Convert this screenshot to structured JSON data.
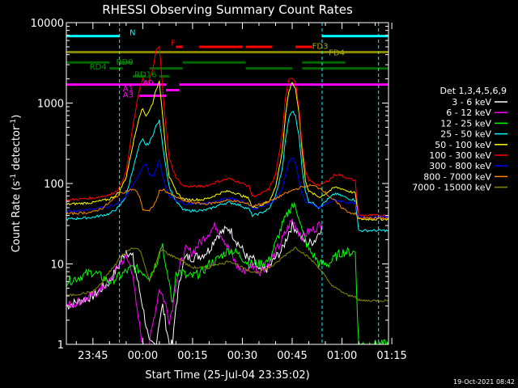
{
  "chart_data": {
    "type": "line",
    "title": "RHESSI Observing Summary Count Rates",
    "xlabel": "Start Time (25-Jul-04 23:35:02)",
    "ylabel_main": "Count Rate (s",
    "ylabel_sup1": "-1",
    "ylabel_mid": " detector",
    "ylabel_sup2": "-1",
    "ylabel_end": ")",
    "yscale": "log",
    "ylim": [
      1,
      10000
    ],
    "xlim_minutes": [
      -23,
      74
    ],
    "x_unit": "minutes from 00:00 (26-Jul-04)",
    "yticks": [
      {
        "value": 1,
        "label": "1"
      },
      {
        "value": 10,
        "label": "10"
      },
      {
        "value": 100,
        "label": "100"
      },
      {
        "value": 1000,
        "label": "1000"
      },
      {
        "value": 10000,
        "label": "10000"
      }
    ],
    "xticks": [
      {
        "value": -15,
        "label": "23:45"
      },
      {
        "value": 0,
        "label": "00:00"
      },
      {
        "value": 15,
        "label": "00:15"
      },
      {
        "value": 30,
        "label": "00:30"
      },
      {
        "value": 45,
        "label": "00:45"
      },
      {
        "value": 60,
        "label": "01:00"
      },
      {
        "value": 75,
        "label": "01:15"
      }
    ],
    "legend_title": "Det 1,3,4,5,6,9",
    "legend_position": "right",
    "timestamp": "19-Oct-2021 08:42",
    "vlines_minutes": [
      -7,
      54,
      71
    ],
    "series": [
      {
        "name": "3 - 6 keV",
        "color": "#ffffff",
        "x": [
          -23,
          -15,
          -10,
          -7,
          -5,
          -3,
          0,
          2,
          4,
          5,
          6,
          8,
          9,
          10,
          12,
          13,
          15,
          18,
          20,
          22,
          24,
          26,
          28,
          30,
          32,
          33,
          35,
          38,
          40,
          42,
          44,
          45,
          46,
          47,
          48,
          50,
          52,
          53,
          54
        ],
        "y": [
          3,
          4,
          6,
          10,
          15,
          12,
          3,
          1,
          1,
          2,
          3,
          1,
          1,
          3,
          10,
          12,
          12,
          13,
          15,
          22,
          25,
          28,
          20,
          15,
          11,
          12,
          8,
          9,
          12,
          15,
          25,
          30,
          28,
          24,
          20,
          18,
          20,
          25,
          30
        ]
      },
      {
        "name": "6 - 12 keV",
        "color": "#ff00ff",
        "x": [
          -23,
          -15,
          -10,
          -7,
          -5,
          -3,
          -2,
          0,
          2,
          4,
          5,
          6,
          7,
          8,
          9,
          10,
          12,
          13,
          15,
          18,
          20,
          22,
          24,
          26,
          28,
          30,
          32,
          33,
          35,
          38,
          40,
          42,
          44,
          45,
          46,
          47,
          48,
          50,
          52,
          53,
          54
        ],
        "y": [
          3,
          4,
          6,
          10,
          12,
          8,
          3,
          1,
          1,
          3,
          5,
          4,
          3,
          2,
          3,
          6,
          12,
          15,
          14,
          20,
          25,
          30,
          22,
          15,
          10,
          8,
          9,
          10,
          8,
          10,
          14,
          20,
          30,
          35,
          30,
          25,
          22,
          25,
          28,
          30,
          32
        ]
      },
      {
        "name": "12 - 25 keV",
        "color": "#00ff00",
        "x": [
          -23,
          -15,
          -10,
          -7,
          -5,
          -3,
          0,
          2,
          4,
          5,
          6,
          7,
          8,
          9,
          10,
          12,
          13,
          15,
          18,
          20,
          22,
          24,
          26,
          28,
          30,
          32,
          33,
          35,
          38,
          40,
          42,
          44,
          45,
          46,
          47,
          48,
          50,
          52,
          53,
          54,
          56,
          58,
          60,
          62,
          64,
          65,
          66,
          68,
          70,
          72,
          74
        ],
        "y": [
          6,
          8,
          6,
          7,
          8,
          9,
          8,
          7,
          10,
          14,
          18,
          8,
          6,
          3,
          8,
          8,
          7,
          7,
          8,
          10,
          11,
          13,
          15,
          14,
          12,
          10,
          10,
          10,
          11,
          18,
          30,
          45,
          55,
          50,
          40,
          25,
          15,
          12,
          10,
          10,
          10,
          12,
          14,
          14,
          14,
          1,
          1,
          1,
          1,
          1,
          1
        ]
      },
      {
        "name": "25 - 50 keV",
        "color": "#00ffff",
        "x": [
          -23,
          -15,
          -10,
          -8,
          -7,
          -5,
          -3,
          -1,
          0,
          1,
          2,
          3,
          4,
          5,
          6,
          7,
          8,
          10,
          12,
          13,
          15,
          18,
          20,
          22,
          24,
          26,
          28,
          30,
          32,
          33,
          35,
          38,
          40,
          42,
          43,
          44,
          45,
          46,
          47,
          48,
          49,
          50,
          52,
          53,
          54,
          56,
          58,
          60,
          62,
          64,
          65,
          66,
          68,
          70,
          72,
          74
        ],
        "y": [
          36,
          38,
          42,
          48,
          52,
          70,
          150,
          300,
          350,
          300,
          320,
          400,
          520,
          600,
          300,
          160,
          90,
          60,
          48,
          46,
          46,
          46,
          48,
          52,
          56,
          58,
          56,
          52,
          48,
          40,
          42,
          48,
          70,
          150,
          350,
          650,
          800,
          700,
          400,
          150,
          80,
          60,
          55,
          50,
          55,
          65,
          75,
          70,
          65,
          62,
          26,
          26,
          26,
          26,
          26,
          26
        ]
      },
      {
        "name": "50 - 100 keV",
        "color": "#ffff00",
        "x": [
          -23,
          -15,
          -10,
          -8,
          -7,
          -5,
          -3,
          -1,
          0,
          1,
          2,
          3,
          4,
          5,
          6,
          7,
          8,
          10,
          12,
          13,
          15,
          18,
          20,
          22,
          24,
          26,
          28,
          30,
          32,
          33,
          35,
          38,
          40,
          42,
          43,
          44,
          45,
          46,
          47,
          48,
          49,
          50,
          52,
          53,
          54,
          56,
          58,
          60,
          62,
          64,
          65,
          66,
          68,
          70,
          72,
          74
        ],
        "y": [
          55,
          58,
          64,
          72,
          80,
          120,
          300,
          700,
          850,
          700,
          800,
          1000,
          1500,
          1800,
          700,
          250,
          120,
          80,
          65,
          63,
          63,
          63,
          66,
          72,
          78,
          80,
          76,
          70,
          65,
          50,
          52,
          60,
          90,
          250,
          700,
          1400,
          1800,
          1500,
          800,
          250,
          110,
          80,
          72,
          68,
          70,
          80,
          90,
          86,
          80,
          76,
          36,
          36,
          36,
          36,
          36,
          36
        ]
      },
      {
        "name": "100 - 300 keV",
        "color": "#ff0000",
        "x": [
          -23,
          -15,
          -10,
          -8,
          -7,
          -5,
          -3,
          -1,
          0,
          1,
          2,
          3,
          4,
          5,
          6,
          7,
          8,
          10,
          12,
          13,
          15,
          18,
          20,
          22,
          24,
          26,
          28,
          30,
          32,
          33,
          35,
          38,
          40,
          42,
          43,
          44,
          45,
          46,
          47,
          48,
          49,
          50,
          52,
          53,
          54,
          56,
          58,
          60,
          62,
          64,
          65,
          66,
          68,
          70,
          72,
          74
        ],
        "y": [
          62,
          66,
          72,
          80,
          90,
          140,
          500,
          1500,
          2000,
          1600,
          2000,
          2500,
          4500,
          5000,
          1500,
          500,
          200,
          120,
          95,
          92,
          92,
          92,
          96,
          104,
          110,
          115,
          108,
          100,
          92,
          70,
          72,
          85,
          130,
          400,
          1200,
          2000,
          2100,
          1800,
          900,
          300,
          140,
          110,
          100,
          95,
          98,
          110,
          130,
          125,
          115,
          108,
          40,
          40,
          40,
          40,
          40,
          40
        ]
      },
      {
        "name": "300 - 800 keV",
        "color": "#0000ff",
        "x": [
          -23,
          -15,
          -10,
          -8,
          -7,
          -5,
          -3,
          -1,
          0,
          1,
          2,
          3,
          4,
          5,
          6,
          7,
          8,
          10,
          12,
          13,
          15,
          18,
          20,
          22,
          24,
          26,
          28,
          30,
          32,
          33,
          35,
          38,
          40,
          42,
          43,
          44,
          45,
          46,
          47,
          48,
          49,
          50,
          52,
          53,
          54,
          56,
          58,
          60,
          62,
          64,
          65,
          66,
          68,
          70,
          72,
          74
        ],
        "y": [
          45,
          48,
          52,
          56,
          60,
          70,
          95,
          130,
          160,
          170,
          130,
          120,
          150,
          200,
          120,
          90,
          70,
          62,
          58,
          56,
          56,
          57,
          58,
          60,
          64,
          66,
          64,
          60,
          56,
          48,
          50,
          55,
          65,
          85,
          130,
          190,
          210,
          180,
          110,
          75,
          60,
          56,
          52,
          50,
          52,
          58,
          62,
          60,
          58,
          56,
          38,
          38,
          38,
          38,
          38,
          38
        ]
      },
      {
        "name": "800 - 7000 keV",
        "color": "#ff8800",
        "x": [
          -23,
          -15,
          -12,
          -10,
          -8,
          -7,
          -5,
          -3,
          -2,
          -1,
          0,
          2,
          4,
          5,
          6,
          8,
          10,
          12,
          13,
          15,
          18,
          20,
          22,
          24,
          26,
          28,
          30,
          32,
          33,
          35,
          38,
          40,
          42,
          44,
          45,
          46,
          48,
          50,
          52,
          54,
          56,
          58,
          60,
          62,
          64,
          65,
          66,
          68,
          70,
          72,
          74
        ],
        "y": [
          42,
          44,
          50,
          58,
          68,
          75,
          80,
          85,
          80,
          70,
          48,
          45,
          60,
          80,
          85,
          75,
          68,
          62,
          60,
          58,
          56,
          56,
          58,
          60,
          62,
          60,
          58,
          55,
          52,
          55,
          60,
          65,
          72,
          78,
          82,
          85,
          90,
          95,
          92,
          85,
          70,
          60,
          50,
          44,
          42,
          37,
          37,
          37,
          37,
          37,
          37
        ]
      },
      {
        "name": "7000 - 15000 keV",
        "color": "#888800",
        "x": [
          -23,
          -15,
          -12,
          -10,
          -8,
          -7,
          -5,
          -3,
          -1,
          0,
          2,
          4,
          5,
          6,
          8,
          10,
          12,
          13,
          15,
          18,
          20,
          22,
          24,
          26,
          28,
          30,
          32,
          33,
          35,
          38,
          40,
          42,
          44,
          45,
          46,
          48,
          50,
          52,
          54,
          56,
          58,
          60,
          62,
          64,
          65,
          66,
          68,
          70,
          72,
          74
        ],
        "y": [
          4,
          4.5,
          6,
          8,
          10,
          12,
          14,
          16,
          15,
          12,
          6,
          10,
          14,
          15,
          13,
          12,
          11,
          10,
          9,
          9,
          9,
          10,
          10,
          11,
          10,
          9,
          8,
          8,
          8,
          9,
          10,
          12,
          14,
          15,
          16,
          14,
          12,
          10,
          8,
          6,
          5,
          4.5,
          4,
          4,
          3.5,
          3.5,
          3.5,
          3.5,
          3.5,
          3.5
        ]
      }
    ],
    "annotations": [
      {
        "text": "N",
        "color": "#00ffff",
        "x": -4,
        "y": 7000
      },
      {
        "text": "F",
        "color": "#ff0000",
        "x": 8.5,
        "y": 5200
      },
      {
        "text": "FD3",
        "color": "#aaaa00",
        "x": 51,
        "y": 4700
      },
      {
        "text": "FD4",
        "color": "#aaaa00",
        "x": 56,
        "y": 3900
      },
      {
        "text": "RD0",
        "color": "#009900",
        "x": -8,
        "y": 3000
      },
      {
        "text": "RD4",
        "color": "#009900",
        "x": -16,
        "y": 2600
      },
      {
        "text": "RD16",
        "color": "#009900",
        "x": -2.5,
        "y": 2100
      },
      {
        "text": "A0",
        "color": "#ff00ff",
        "x": 0,
        "y": 1650
      },
      {
        "text": "A1",
        "color": "#ff00ff",
        "x": -6,
        "y": 1400
      },
      {
        "text": "A3",
        "color": "#ff00ff",
        "x": -6,
        "y": 1180
      }
    ],
    "flag_bars": [
      {
        "color": "#00ffff",
        "segments": [
          [
            -23,
            -7
          ],
          [
            54,
            74
          ]
        ],
        "y": 6800
      },
      {
        "color": "#ff0000",
        "segments": [
          [
            10,
            12
          ],
          [
            17,
            30
          ],
          [
            31,
            39
          ],
          [
            46,
            51
          ]
        ],
        "y": 5000
      },
      {
        "color": "#888800",
        "segments": [
          [
            -23,
            74
          ]
        ],
        "y": 4300
      },
      {
        "color": "#006600",
        "segments": [
          [
            -23,
            -10
          ],
          [
            -7,
            -3
          ],
          [
            12,
            31
          ],
          [
            48,
            61
          ]
        ],
        "y": 3200
      },
      {
        "color": "#006600",
        "segments": [
          [
            -10,
            -6
          ],
          [
            2,
            12
          ],
          [
            31,
            45
          ],
          [
            48,
            74
          ]
        ],
        "y": 2700
      },
      {
        "color": "#006600",
        "segments": [
          [
            -3,
            1
          ],
          [
            5,
            8
          ]
        ],
        "y": 2150
      },
      {
        "color": "#ff00ff",
        "segments": [
          [
            -23,
            7
          ],
          [
            11,
            74
          ]
        ],
        "y": 1700
      },
      {
        "color": "#ff00ff",
        "segments": [
          [
            7,
            11
          ]
        ],
        "y": 1450
      },
      {
        "color": "#ff00ff",
        "segments": [
          [
            -1,
            7
          ]
        ],
        "y": 1230
      }
    ]
  }
}
